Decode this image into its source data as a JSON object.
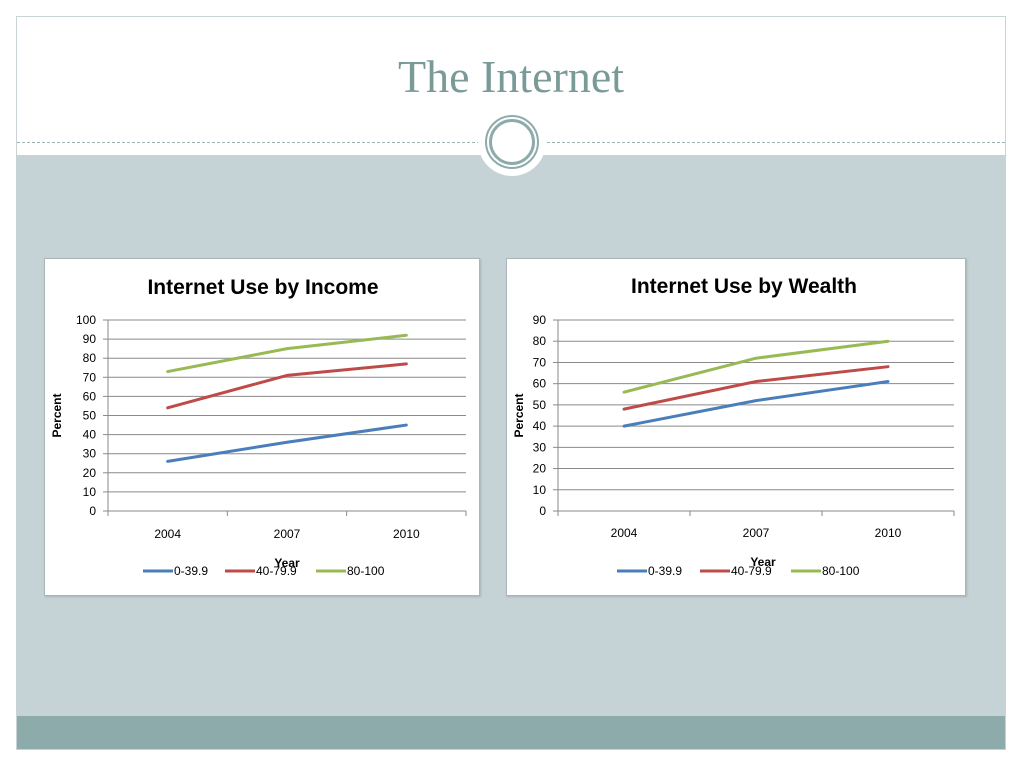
{
  "slide": {
    "title": "The Internet",
    "colors": {
      "title": "#7a9a98",
      "content_bg": "#c5d3d6",
      "footer_bg": "#8eabab"
    }
  },
  "chart_data": [
    {
      "type": "line",
      "title": "Internet Use by Income",
      "xlabel": "Year",
      "ylabel": "Percent",
      "categories": [
        "2004",
        "2007",
        "2010"
      ],
      "ylim": [
        0,
        100
      ],
      "yticks": [
        0,
        10,
        20,
        30,
        40,
        50,
        60,
        70,
        80,
        90,
        100
      ],
      "grid": true,
      "legend": "bottom",
      "series": [
        {
          "name": "0-39.9",
          "color": "#4a7ebb",
          "values": [
            26,
            36,
            45
          ]
        },
        {
          "name": "40-79.9",
          "color": "#be4b48",
          "values": [
            54,
            71,
            77
          ]
        },
        {
          "name": "80-100",
          "color": "#98b954",
          "values": [
            73,
            85,
            92
          ]
        }
      ]
    },
    {
      "type": "line",
      "title": "Internet Use by Wealth",
      "xlabel": "Year",
      "ylabel": "Percent",
      "categories": [
        "2004",
        "2007",
        "2010"
      ],
      "ylim": [
        0,
        90
      ],
      "yticks": [
        0,
        10,
        20,
        30,
        40,
        50,
        60,
        70,
        80,
        90
      ],
      "grid": true,
      "legend": "bottom",
      "series": [
        {
          "name": "0-39.9",
          "color": "#4a7ebb",
          "values": [
            40,
            52,
            61
          ]
        },
        {
          "name": "40-79.9",
          "color": "#be4b48",
          "values": [
            48,
            61,
            68
          ]
        },
        {
          "name": "80-100",
          "color": "#98b954",
          "values": [
            56,
            72,
            80
          ]
        }
      ]
    }
  ]
}
